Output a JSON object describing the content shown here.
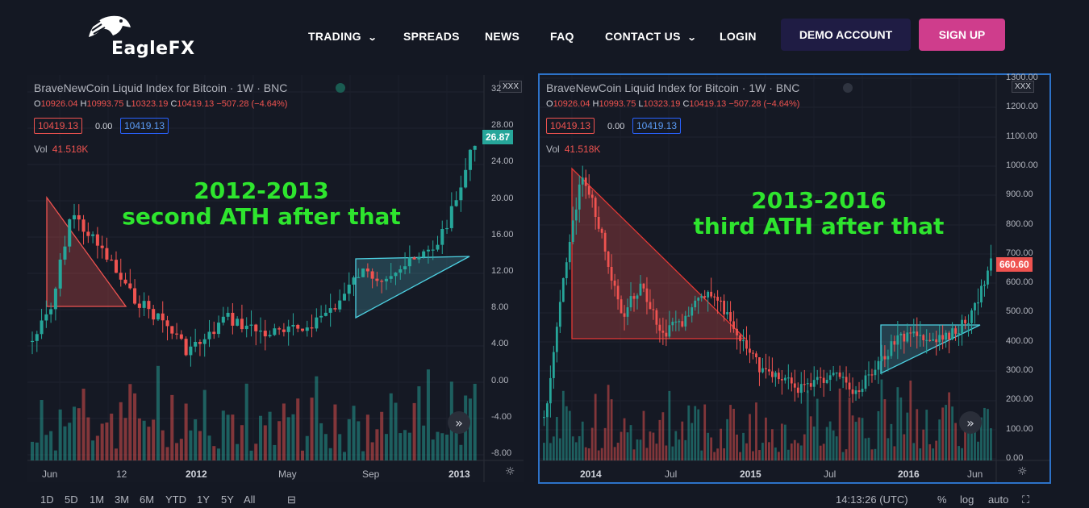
{
  "header": {
    "brand": "EagleFX",
    "nav": [
      {
        "label": "TRADING",
        "chev": true
      },
      {
        "label": "SPREADS",
        "chev": false
      },
      {
        "label": "NEWS",
        "chev": false
      },
      {
        "label": "FAQ",
        "chev": false
      },
      {
        "label": "CONTACT US",
        "chev": true
      },
      {
        "label": "LOGIN",
        "chev": false
      }
    ],
    "demo_label": "DEMO ACCOUNT",
    "signup_label": "SIGN UP"
  },
  "colors": {
    "up": "#26a69a",
    "down": "#ef5350",
    "annotation": "#2ee52e",
    "accent": "#2962ff"
  },
  "legend": {
    "title": "BraveNewCoin Liquid Index for Bitcoin · 1W · BNC",
    "o": "10926.04",
    "h": "10993.75",
    "l": "10323.19",
    "c": "10419.13",
    "chg": "−507.28 (−4.64%)",
    "bid": "10419.13",
    "spread": "0.00",
    "ask": "10419.13",
    "vol_label": "Vol",
    "vol_value": "41.518K",
    "tag": "XXX"
  },
  "charts": [
    {
      "annotation_line1": "2012-2013",
      "annotation_line2": "second ATH after that",
      "y_labels": [
        "32",
        "28.00",
        "24.00",
        "20.00",
        "16.00",
        "12.00",
        "8.00",
        "4.00",
        "0.00",
        "-4.00",
        "-8.00"
      ],
      "x_labels": [
        {
          "t": "Jun",
          "b": false
        },
        {
          "t": "12",
          "b": false
        },
        {
          "t": "2012",
          "b": true
        },
        {
          "t": "May",
          "b": false
        },
        {
          "t": "Sep",
          "b": false
        },
        {
          "t": "2013",
          "b": true
        }
      ],
      "last_price": "26.87"
    },
    {
      "annotation_line1": "2013-2016",
      "annotation_line2": "third ATH after that",
      "y_labels": [
        "1300.00",
        "1200.00",
        "1100.00",
        "1000.00",
        "900.00",
        "800.00",
        "700.00",
        "600.00",
        "500.00",
        "400.00",
        "300.00",
        "200.00",
        "100.00",
        "0.00"
      ],
      "x_labels": [
        {
          "t": "2014",
          "b": true
        },
        {
          "t": "Jul",
          "b": false
        },
        {
          "t": "2015",
          "b": true
        },
        {
          "t": "Jul",
          "b": false
        },
        {
          "t": "2016",
          "b": true
        },
        {
          "t": "Jun",
          "b": false
        }
      ],
      "last_price": "660.60"
    }
  ],
  "bottombar": {
    "timeframes": [
      "1D",
      "5D",
      "1M",
      "3M",
      "6M",
      "YTD",
      "1Y",
      "5Y",
      "All"
    ],
    "time": "14:13:26 (UTC)",
    "percent": "%",
    "log": "log",
    "auto": "auto"
  }
}
